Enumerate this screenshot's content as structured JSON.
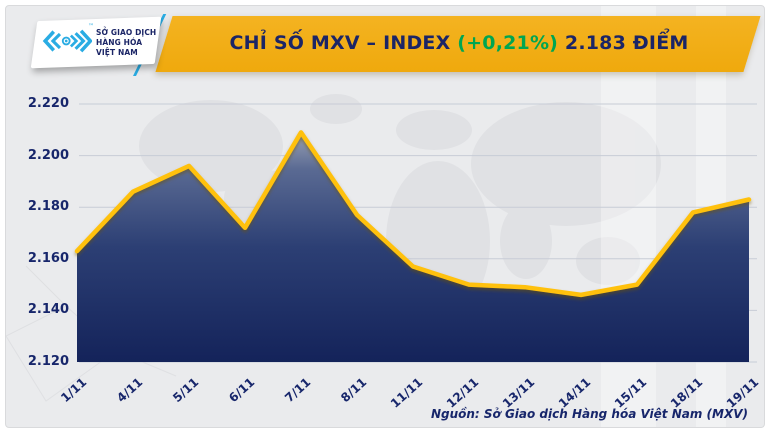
{
  "header": {
    "logo": {
      "org_lines": [
        "SỞ GIAO DỊCH",
        "HÀNG HÓA",
        "VIỆT NAM"
      ],
      "trademark": "™"
    },
    "banner": {
      "title_prefix": "CHỈ SỐ MXV – INDEX ",
      "change_pct": "(+0,21%)",
      "title_suffix": " 2.183 ĐIỂM"
    }
  },
  "chart_data": {
    "type": "area",
    "title": "CHỈ SỐ MXV – INDEX",
    "x": [
      "1/11",
      "4/11",
      "5/11",
      "6/11",
      "7/11",
      "8/11",
      "11/11",
      "12/11",
      "13/11",
      "14/11",
      "15/11",
      "18/11",
      "19/11"
    ],
    "values": [
      2163,
      2186,
      2196,
      2172,
      2209,
      2177,
      2157,
      2150,
      2149,
      2146,
      2150,
      2178,
      2183
    ],
    "unit": "điểm",
    "ylim": [
      2120,
      2220
    ],
    "y_ticks": [
      {
        "label": "2.220",
        "value": 2220
      },
      {
        "label": "2.200",
        "value": 2200
      },
      {
        "label": "2.180",
        "value": 2180
      },
      {
        "label": "2.160",
        "value": 2160
      },
      {
        "label": "2.140",
        "value": 2140
      },
      {
        "label": "2.120",
        "value": 2120
      }
    ],
    "grid": true,
    "legend": false,
    "colors": {
      "line": "#FFC10D",
      "area_top": "#9AA2B4",
      "area_mid": "#2C3F74",
      "area_bottom": "#14235A",
      "grid": "#C7CCD6",
      "tick_text": "#17266B"
    }
  },
  "footer": {
    "source": "Nguồn: Sở Giao dịch Hàng hóa Việt Nam (MXV)"
  },
  "theme": {
    "banner_bg": "#EFA90D",
    "banner_text": "#1B2566",
    "change_green": "#00A651",
    "logo_cyan": "#2AACE3",
    "panel_bg": "#EAEBED"
  }
}
